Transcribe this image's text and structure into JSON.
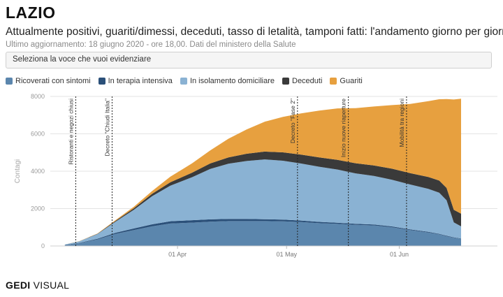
{
  "header": {
    "title": "LAZIO",
    "subtitle": "Attualmente positivi, guariti/dimessi, deceduti, tasso di letalità, tamponi fatti: l'andamento giorno per giorno",
    "updated": "Ultimo aggiornamento: 18 giugno 2020 - ore 18,00. Dati del ministero della Salute"
  },
  "selector": {
    "placeholder": "Seleziona la voce che vuoi evidenziare"
  },
  "footer": {
    "logo_gedi": "GEDI",
    "logo_visual": "VISUAL"
  },
  "colors": {
    "ricoverati": "#5b86ad",
    "terapia": "#2b5079",
    "isolamento": "#8ab2d3",
    "deceduti": "#3a3a3a",
    "guariti": "#e7a03f"
  },
  "chart_data": {
    "type": "area",
    "stacked": true,
    "title": "",
    "xlabel": "",
    "ylabel": "Contagi",
    "ylim": [
      0,
      8000
    ],
    "yticks": [
      0,
      2000,
      4000,
      6000,
      8000
    ],
    "xticks": [
      {
        "date": "2020-04-01",
        "label": "01 Apr"
      },
      {
        "date": "2020-05-01",
        "label": "01 May"
      },
      {
        "date": "2020-06-01",
        "label": "01 Jun"
      }
    ],
    "grid": true,
    "legend_position": "top-left",
    "x": [
      "2020-03-01",
      "2020-03-05",
      "2020-03-10",
      "2020-03-15",
      "2020-03-20",
      "2020-03-25",
      "2020-03-30",
      "2020-04-05",
      "2020-04-10",
      "2020-04-15",
      "2020-04-20",
      "2020-04-25",
      "2020-04-30",
      "2020-05-05",
      "2020-05-10",
      "2020-05-15",
      "2020-05-20",
      "2020-05-25",
      "2020-05-30",
      "2020-06-04",
      "2020-06-09",
      "2020-06-12",
      "2020-06-14",
      "2020-06-16",
      "2020-06-18"
    ],
    "series": [
      {
        "name": "Ricoverati con sintomi",
        "color": "#5b86ad",
        "values": [
          50,
          150,
          350,
          650,
          850,
          1050,
          1200,
          1250,
          1300,
          1330,
          1330,
          1330,
          1320,
          1280,
          1220,
          1180,
          1130,
          1100,
          1000,
          850,
          720,
          620,
          520,
          440,
          380
        ]
      },
      {
        "name": "In terapia intensiva",
        "color": "#2b5079",
        "values": [
          10,
          20,
          40,
          60,
          90,
          110,
          125,
          130,
          125,
          120,
          115,
          100,
          90,
          80,
          70,
          60,
          55,
          50,
          45,
          40,
          35,
          30,
          28,
          25,
          22
        ]
      },
      {
        "name": "In isolamento domiciliare",
        "color": "#8ab2d3",
        "values": [
          20,
          80,
          250,
          600,
          1000,
          1500,
          1900,
          2300,
          2700,
          2950,
          3100,
          3200,
          3150,
          3050,
          2950,
          2850,
          2700,
          2600,
          2500,
          2400,
          2300,
          2200,
          1900,
          800,
          650
        ]
      },
      {
        "name": "Deceduti",
        "color": "#3a3a3a",
        "values": [
          0,
          5,
          15,
          40,
          80,
          130,
          180,
          240,
          290,
          340,
          390,
          420,
          450,
          480,
          500,
          520,
          540,
          560,
          590,
          610,
          640,
          650,
          660,
          670,
          680
        ]
      },
      {
        "name": "Guariti",
        "color": "#e7a03f",
        "values": [
          0,
          5,
          15,
          40,
          80,
          150,
          300,
          500,
          700,
          1000,
          1300,
          1600,
          1900,
          2200,
          2500,
          2750,
          2950,
          3150,
          3400,
          3700,
          4050,
          4350,
          4750,
          5900,
          6150
        ]
      }
    ],
    "annotations": [
      {
        "date": "2020-03-04",
        "text": "Ristoranti e negozi chiusi"
      },
      {
        "date": "2020-03-14",
        "text": "Decreto \"Chiudi Italia\""
      },
      {
        "date": "2020-05-04",
        "text": "Decreto \"Fase 2\""
      },
      {
        "date": "2020-05-18",
        "text": "Inizio nuove riaperture"
      },
      {
        "date": "2020-06-03",
        "text": "Mobilità tra regioni"
      }
    ]
  }
}
